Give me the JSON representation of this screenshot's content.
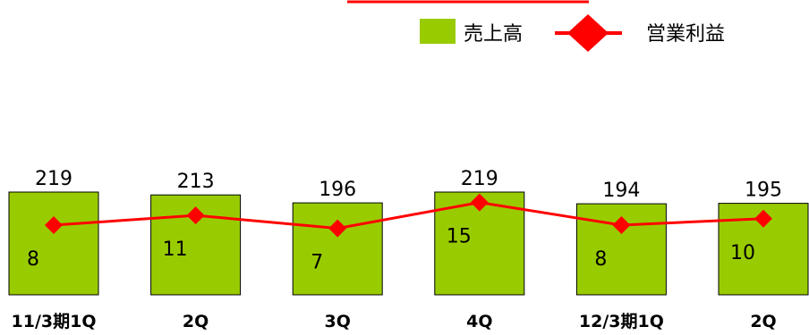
{
  "chart_data": {
    "type": "bar",
    "categories": [
      "11/3期1Q",
      "2Q",
      "3Q",
      "4Q",
      "12/3期1Q",
      "2Q"
    ],
    "series": [
      {
        "name": "売上高",
        "type": "bar",
        "values": [
          219,
          213,
          196,
          219,
          194,
          195
        ],
        "color": "#99cc00"
      },
      {
        "name": "営業利益",
        "type": "line",
        "values": [
          8,
          11,
          7,
          15,
          8,
          10
        ],
        "color": "#ff0000"
      }
    ],
    "title": "",
    "xlabel": "",
    "ylabel": "",
    "bar_ylim": [
      0,
      350
    ],
    "line_ylim": [
      -28,
      50
    ],
    "grid": false,
    "legend": "top-right"
  }
}
